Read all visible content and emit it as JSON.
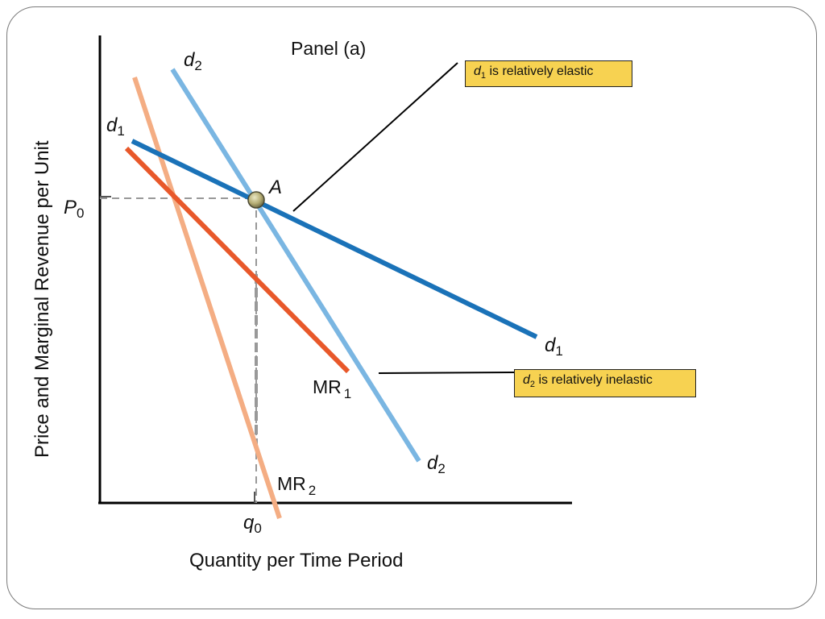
{
  "panel_title": "Panel (a)",
  "chart_data": {
    "type": "line",
    "title": "Panel (a)",
    "xlabel": "Quantity per Time Period",
    "ylabel": "Price and Marginal Revenue per Unit",
    "point": {
      "name": "A",
      "x_label": "q0",
      "y_label": "P0"
    },
    "curve_labels": {
      "d1": {
        "letter": "d",
        "sub": "1"
      },
      "d2": {
        "letter": "d",
        "sub": "2"
      },
      "mr1": {
        "letter": "MR",
        "sub": "1"
      },
      "mr2": {
        "letter": "MR",
        "sub": "2"
      },
      "p0": {
        "letter": "P",
        "sub": "0"
      },
      "q0": {
        "letter": "q",
        "sub": "0"
      }
    },
    "series": [
      {
        "id": "d1",
        "color": "#1a72b8"
      },
      {
        "id": "d2",
        "color": "#7ab6e2"
      },
      {
        "id": "mr1",
        "color": "#e8582a"
      },
      {
        "id": "mr2",
        "color": "#f4ad83"
      }
    ]
  },
  "callouts": {
    "elastic": {
      "sym": "d",
      "sub": "1",
      "text": " is relatively elastic"
    },
    "inelastic": {
      "sym": "d",
      "sub": "2",
      "text": " is relatively inelastic"
    }
  }
}
